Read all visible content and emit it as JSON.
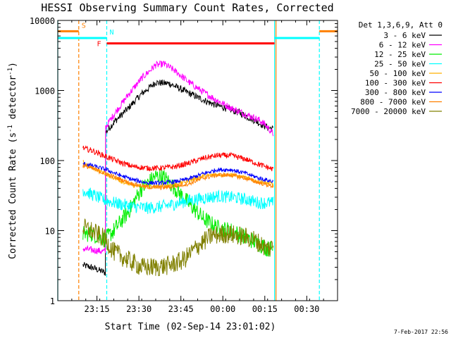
{
  "chart_data": {
    "type": "line",
    "title": "HESSI Observing Summary Count Rates, Corrected",
    "xlabel": "Start Time (02-Sep-14 23:01:02)",
    "ylabel": "Corrected Count Rate (s",
    "ylabel_sup": "-1",
    "ylabel_tail": " detector",
    "ylabel_sup2": "-1",
    "ylabel_close": ")",
    "footer_date": "7-Feb-2017 22:56",
    "y_scale": "log",
    "ylim": [
      1,
      10000
    ],
    "xlim_minutes": [
      0,
      100
    ],
    "x_ticks": [
      {
        "minute": 14,
        "label": "23:15"
      },
      {
        "minute": 29,
        "label": "23:30"
      },
      {
        "minute": 44,
        "label": "23:45"
      },
      {
        "minute": 59,
        "label": "00:00"
      },
      {
        "minute": 74,
        "label": "00:15"
      },
      {
        "minute": 89,
        "label": "00:30"
      }
    ],
    "y_ticks": [
      {
        "value": 1,
        "label": "1"
      },
      {
        "value": 10,
        "label": "10"
      },
      {
        "value": 100,
        "label": "100"
      },
      {
        "value": 1000,
        "label": "1000"
      },
      {
        "value": 10000,
        "label": "10000"
      }
    ],
    "legend": {
      "header": "Det 1,3,6,9, Att 0",
      "placement": "right"
    },
    "series": [
      {
        "name": "3 - 6 keV",
        "color": "#000000",
        "noise": 0.05,
        "points": [
          [
            9,
            3.2
          ],
          [
            12,
            3.0
          ],
          [
            17,
            2.5
          ],
          [
            17.1,
            250
          ],
          [
            20,
            350
          ],
          [
            25,
            550
          ],
          [
            30,
            900
          ],
          [
            35,
            1300
          ],
          [
            40,
            1250
          ],
          [
            45,
            1000
          ],
          [
            50,
            800
          ],
          [
            55,
            650
          ],
          [
            60,
            560
          ],
          [
            65,
            480
          ],
          [
            70,
            380
          ],
          [
            74,
            310
          ],
          [
            77,
            280
          ]
        ]
      },
      {
        "name": "6 - 12 keV",
        "color": "#ff00ff",
        "noise": 0.05,
        "points": [
          [
            9,
            5.5
          ],
          [
            12,
            5.3
          ],
          [
            17,
            5.0
          ],
          [
            17.1,
            300
          ],
          [
            20,
            450
          ],
          [
            25,
            850
          ],
          [
            30,
            1500
          ],
          [
            35,
            2300
          ],
          [
            38,
            2400
          ],
          [
            42,
            1900
          ],
          [
            47,
            1300
          ],
          [
            52,
            950
          ],
          [
            57,
            720
          ],
          [
            62,
            560
          ],
          [
            67,
            460
          ],
          [
            72,
            380
          ],
          [
            74,
            330
          ],
          [
            77,
            240
          ]
        ]
      },
      {
        "name": "12 - 25 keV",
        "color": "#00ee00",
        "noise": 0.12,
        "points": [
          [
            9,
            9
          ],
          [
            12,
            9
          ],
          [
            17,
            7.5
          ],
          [
            20,
            10
          ],
          [
            25,
            18
          ],
          [
            30,
            40
          ],
          [
            35,
            60
          ],
          [
            38,
            58
          ],
          [
            42,
            40
          ],
          [
            47,
            24
          ],
          [
            52,
            15
          ],
          [
            57,
            11
          ],
          [
            62,
            10
          ],
          [
            67,
            8
          ],
          [
            72,
            6.5
          ],
          [
            75,
            5.5
          ],
          [
            77,
            5.5
          ]
        ]
      },
      {
        "name": "25 - 50 keV",
        "color": "#00ffff",
        "noise": 0.09,
        "points": [
          [
            9,
            38
          ],
          [
            12,
            33
          ],
          [
            17,
            27
          ],
          [
            22,
            24
          ],
          [
            27,
            22
          ],
          [
            32,
            21
          ],
          [
            37,
            22
          ],
          [
            42,
            24
          ],
          [
            47,
            27
          ],
          [
            52,
            29
          ],
          [
            57,
            31
          ],
          [
            62,
            30
          ],
          [
            67,
            28
          ],
          [
            72,
            25
          ],
          [
            77,
            25
          ]
        ]
      },
      {
        "name": "50 - 100 keV",
        "color": "#ffb000",
        "noise": 0.03,
        "points": [
          [
            9,
            95
          ],
          [
            12,
            80
          ],
          [
            17,
            65
          ],
          [
            22,
            52
          ],
          [
            27,
            44
          ],
          [
            32,
            42
          ],
          [
            37,
            43
          ],
          [
            42,
            46
          ],
          [
            47,
            52
          ],
          [
            52,
            60
          ],
          [
            57,
            63
          ],
          [
            62,
            63
          ],
          [
            67,
            57
          ],
          [
            72,
            50
          ],
          [
            77,
            46
          ]
        ]
      },
      {
        "name": "100 - 300 keV",
        "color": "#ff0000",
        "noise": 0.04,
        "points": [
          [
            9,
            150
          ],
          [
            12,
            140
          ],
          [
            17,
            115
          ],
          [
            22,
            95
          ],
          [
            27,
            82
          ],
          [
            32,
            78
          ],
          [
            37,
            78
          ],
          [
            42,
            82
          ],
          [
            47,
            92
          ],
          [
            52,
            108
          ],
          [
            57,
            118
          ],
          [
            62,
            118
          ],
          [
            67,
            105
          ],
          [
            72,
            88
          ],
          [
            77,
            75
          ]
        ]
      },
      {
        "name": "300 - 800 keV",
        "color": "#0000ff",
        "noise": 0.03,
        "points": [
          [
            9,
            90
          ],
          [
            12,
            85
          ],
          [
            17,
            75
          ],
          [
            22,
            62
          ],
          [
            27,
            53
          ],
          [
            32,
            48
          ],
          [
            37,
            48
          ],
          [
            42,
            50
          ],
          [
            47,
            55
          ],
          [
            52,
            65
          ],
          [
            57,
            74
          ],
          [
            62,
            74
          ],
          [
            67,
            66
          ],
          [
            72,
            56
          ],
          [
            77,
            50
          ]
        ]
      },
      {
        "name": "800 - 7000 keV",
        "color": "#ff8000",
        "noise": 0.03,
        "points": [
          [
            9,
            85
          ],
          [
            12,
            78
          ],
          [
            17,
            65
          ],
          [
            22,
            55
          ],
          [
            27,
            46
          ],
          [
            32,
            42
          ],
          [
            37,
            41
          ],
          [
            42,
            43
          ],
          [
            47,
            47
          ],
          [
            52,
            56
          ],
          [
            57,
            62
          ],
          [
            62,
            62
          ],
          [
            67,
            56
          ],
          [
            72,
            48
          ],
          [
            77,
            43
          ]
        ]
      },
      {
        "name": "7000 - 20000 keV",
        "color": "#808000",
        "noise": 0.14,
        "points": [
          [
            9,
            11
          ],
          [
            12,
            10
          ],
          [
            17,
            7.5
          ],
          [
            20,
            5
          ],
          [
            25,
            3.8
          ],
          [
            30,
            3.0
          ],
          [
            35,
            3.0
          ],
          [
            40,
            3.2
          ],
          [
            45,
            3.8
          ],
          [
            50,
            6
          ],
          [
            55,
            8.5
          ],
          [
            60,
            9
          ],
          [
            65,
            8.5
          ],
          [
            70,
            7.5
          ],
          [
            75,
            5.5
          ],
          [
            77,
            6
          ]
        ]
      }
    ],
    "overlays": [
      {
        "label": "S",
        "color": "#ff8000",
        "segments": [
          [
            0,
            7.5
          ],
          [
            93.5,
            100
          ]
        ],
        "value": 7000
      },
      {
        "label": "N",
        "color": "#00ffff",
        "segments": [
          [
            0,
            17.5
          ],
          [
            77.5,
            93.5
          ]
        ],
        "value": 5600
      },
      {
        "label": "F",
        "color": "#ff0000",
        "segments": [
          [
            17.5,
            77.5
          ]
        ],
        "value": 4700
      }
    ],
    "vlines": [
      {
        "minute": 0,
        "color": "#00ffff",
        "style": "solid"
      },
      {
        "minute": 7.5,
        "color": "#ff8000",
        "style": "dashed"
      },
      {
        "minute": 17.5,
        "color": "#00ffff",
        "style": "dashed"
      },
      {
        "minute": 77.5,
        "color": "#00ffff",
        "style": "solid"
      },
      {
        "minute": 78.0,
        "color": "#ff8000",
        "style": "solid"
      },
      {
        "minute": 93.5,
        "color": "#00ffff",
        "style": "dashed"
      }
    ]
  }
}
